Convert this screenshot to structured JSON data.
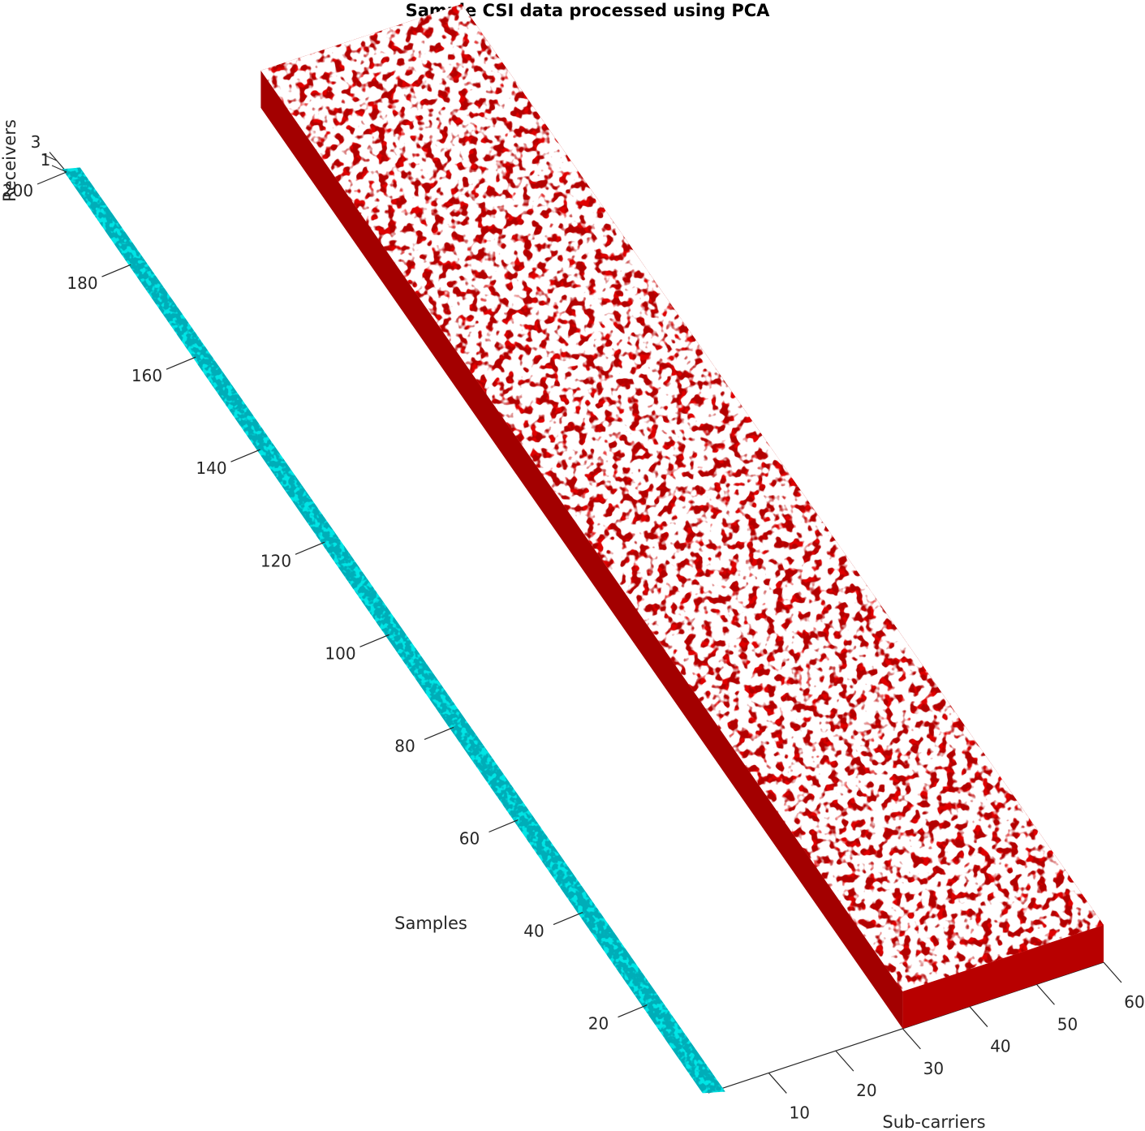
{
  "chart_data": {
    "type": "3d isosurface",
    "title": "Sample CSI data processed using PCA",
    "axes": {
      "samples": {
        "label": "Samples",
        "range": [
          1,
          200
        ],
        "ticks": [
          20,
          40,
          60,
          80,
          100,
          120,
          140,
          160,
          180,
          200
        ]
      },
      "subcarriers": {
        "label": "Sub-carriers",
        "range": [
          1,
          60
        ],
        "ticks": [
          10,
          20,
          30,
          40,
          50,
          60
        ]
      },
      "receivers": {
        "label": "Receivers",
        "range": [
          1,
          3
        ],
        "ticks": [
          1,
          3
        ]
      }
    },
    "series": [
      {
        "color": "#00e5e5",
        "subcarriers": [
          1,
          1
        ],
        "samples": [
          1,
          200
        ]
      },
      {
        "color": "#e00000",
        "subcarriers": [
          30,
          60
        ],
        "samples": [
          1,
          200
        ]
      }
    ],
    "grid": false,
    "legend": "none"
  }
}
